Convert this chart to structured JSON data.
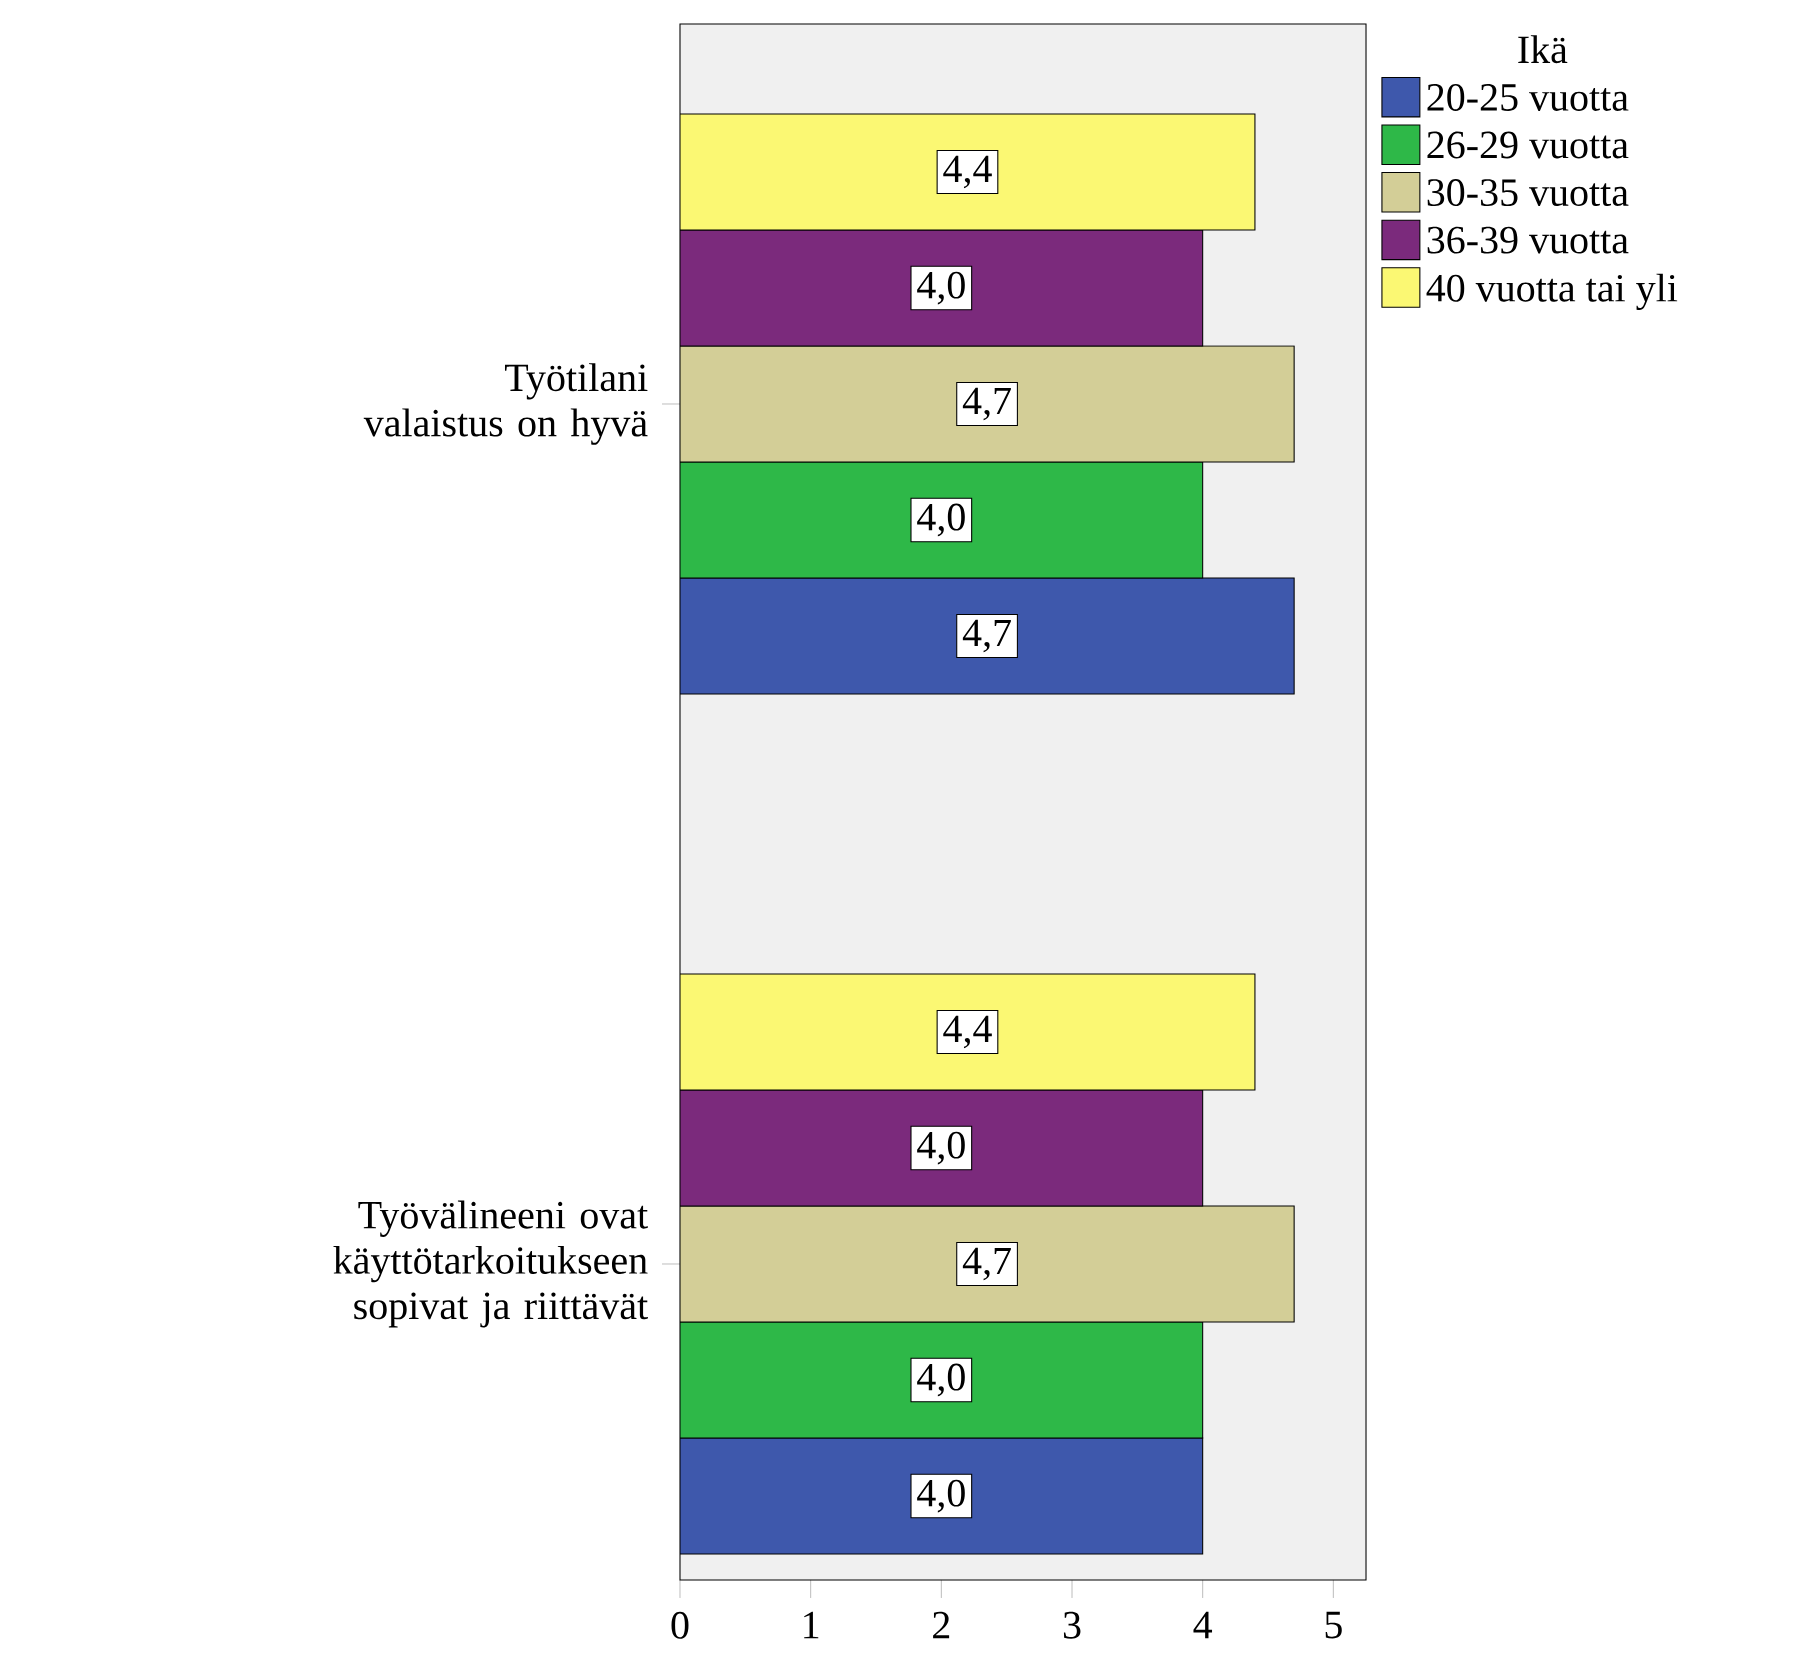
{
  "chart_data": {
    "type": "bar",
    "orientation": "horizontal",
    "legend_title": "Ikä",
    "legend": "top right",
    "categories": [
      "Työtilani valaistus on hyvä",
      "Työvälineeni ovat käyttötarkoitukseen sopivat ja riittävät"
    ],
    "series": [
      {
        "name": "20-25 vuotta",
        "color": "#3e58ac",
        "values": [
          4.7,
          4.0
        ],
        "value_labels": [
          "4,7",
          "4,0"
        ]
      },
      {
        "name": "26-29 vuotta",
        "color": "#2eb848",
        "values": [
          4.0,
          4.0
        ],
        "value_labels": [
          "4,0",
          "4,0"
        ]
      },
      {
        "name": "30-35 vuotta",
        "color": "#d3ce97",
        "values": [
          4.7,
          4.7
        ],
        "value_labels": [
          "4,7",
          "4,7"
        ]
      },
      {
        "name": "36-39 vuotta",
        "color": "#7b2a7c",
        "values": [
          4.0,
          4.0
        ],
        "value_labels": [
          "4,0",
          "4,0"
        ]
      },
      {
        "name": "40 vuotta tai yli",
        "color": "#fbf873",
        "values": [
          4.4,
          4.4
        ],
        "value_labels": [
          "4,4",
          "4,4"
        ]
      }
    ],
    "xlim": [
      0,
      5.25
    ],
    "xticks": [
      0,
      1,
      2,
      3,
      4,
      5
    ]
  }
}
